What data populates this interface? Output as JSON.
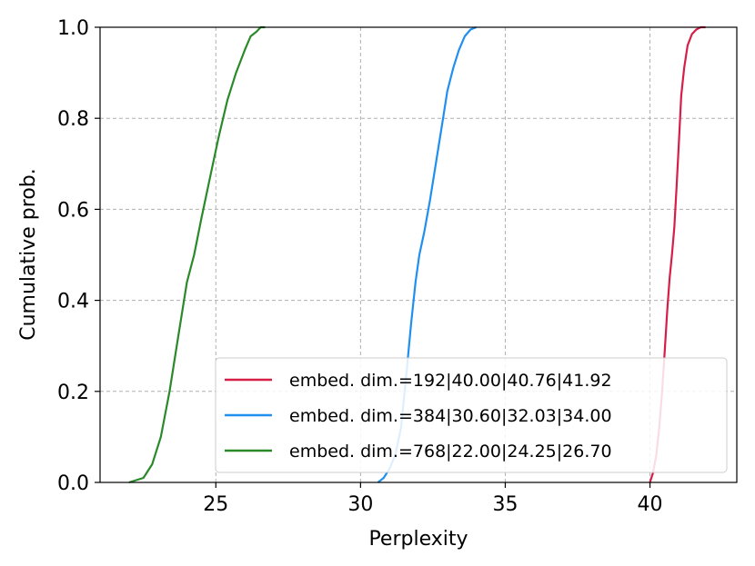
{
  "chart_data": {
    "type": "line",
    "title": "",
    "xlabel": "Perplexity",
    "ylabel": "Cumulative prob.",
    "xlim": [
      21,
      43
    ],
    "ylim": [
      0.0,
      1.0
    ],
    "xticks": [
      25,
      30,
      35,
      40
    ],
    "xtick_labels": [
      "25",
      "30",
      "35",
      "40"
    ],
    "yticks": [
      0.0,
      0.2,
      0.4,
      0.6,
      0.8,
      1.0
    ],
    "ytick_labels": [
      "0.0",
      "0.2",
      "0.4",
      "0.6",
      "0.8",
      "1.0"
    ],
    "grid": true,
    "legend_position": "lower-right",
    "series": [
      {
        "name": "embed. dim.=192|40.00|40.76|41.92",
        "color": "#d61e47",
        "x": [
          40.0,
          40.1,
          40.22,
          40.32,
          40.42,
          40.5,
          40.6,
          40.68,
          40.76,
          40.84,
          40.92,
          41.0,
          41.08,
          41.18,
          41.3,
          41.45,
          41.6,
          41.75,
          41.92
        ],
        "y": [
          0.0,
          0.02,
          0.06,
          0.12,
          0.2,
          0.28,
          0.38,
          0.45,
          0.5,
          0.56,
          0.65,
          0.75,
          0.85,
          0.91,
          0.96,
          0.985,
          0.995,
          1.0,
          1.0
        ]
      },
      {
        "name": "embed. dim.=384|30.60|32.03|34.00",
        "color": "#1f8ff0",
        "x": [
          30.6,
          30.8,
          31.0,
          31.2,
          31.4,
          31.6,
          31.75,
          31.9,
          32.03,
          32.2,
          32.4,
          32.6,
          32.8,
          33.0,
          33.2,
          33.4,
          33.6,
          33.8,
          34.0
        ],
        "y": [
          0.0,
          0.01,
          0.03,
          0.06,
          0.12,
          0.25,
          0.35,
          0.44,
          0.5,
          0.55,
          0.62,
          0.7,
          0.78,
          0.86,
          0.91,
          0.95,
          0.98,
          0.995,
          1.0
        ]
      },
      {
        "name": "embed. dim.=768|22.00|24.25|26.70",
        "color": "#2a8a2a",
        "x": [
          22.0,
          22.5,
          22.8,
          23.1,
          23.4,
          23.7,
          24.0,
          24.25,
          24.5,
          24.8,
          25.1,
          25.4,
          25.7,
          26.0,
          26.2,
          26.4,
          26.55,
          26.7
        ],
        "y": [
          0.0,
          0.01,
          0.04,
          0.1,
          0.2,
          0.32,
          0.44,
          0.5,
          0.58,
          0.67,
          0.76,
          0.84,
          0.9,
          0.95,
          0.98,
          0.99,
          1.0,
          1.0
        ]
      }
    ]
  }
}
